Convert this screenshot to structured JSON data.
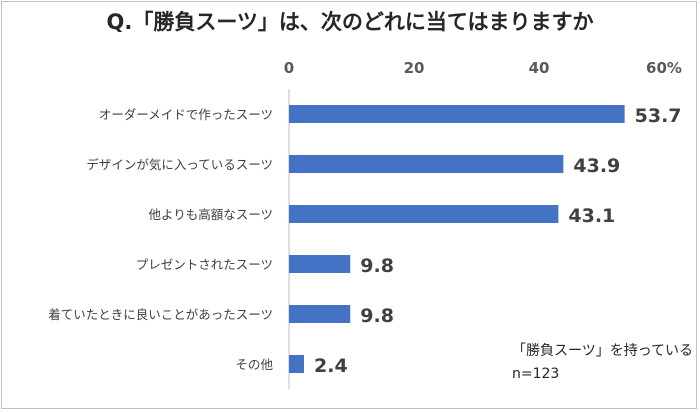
{
  "chart_data": {
    "type": "bar",
    "orientation": "horizontal",
    "title": "Q.「勝負スーツ」は、次のどれに当てはまりますか",
    "categories": [
      "オーダーメイドで作ったスーツ",
      "デザインが気に入っているスーツ",
      "他よりも高額なスーツ",
      "プレゼントされたスーツ",
      "着ていたときに良いことがあったスーツ",
      "その他"
    ],
    "values": [
      53.7,
      43.9,
      43.1,
      9.8,
      9.8,
      2.4
    ],
    "value_labels": [
      "53.7",
      "43.9",
      "43.1",
      "9.8",
      "9.8",
      "2.4"
    ],
    "xlim": [
      0,
      60
    ],
    "tick_labels": [
      "0",
      "20",
      "40",
      "60%"
    ],
    "bar_color": "#4472c4",
    "grid": false,
    "axis_position": "top",
    "notes": [
      "「勝負スーツ」を持っている",
      "n=123"
    ]
  }
}
